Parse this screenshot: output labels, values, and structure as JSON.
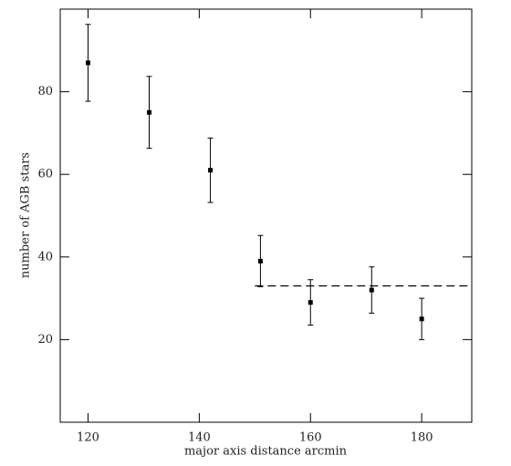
{
  "chart_data": {
    "type": "scatter",
    "xlabel": "major axis distance arcmin",
    "ylabel": "number of AGB stars",
    "x": [
      120,
      131,
      142,
      151,
      160,
      171,
      180
    ],
    "series": [
      {
        "color": "#000000",
        "values": [
          87,
          75,
          61,
          39,
          29,
          32,
          25
        ],
        "errors": [
          9.3,
          8.7,
          7.8,
          6.2,
          5.5,
          5.6,
          5
        ]
      }
    ],
    "hline": {
      "value": 33,
      "x_start": 150,
      "style": "dashed"
    },
    "xlim": [
      115,
      189
    ],
    "xticks": [
      120,
      140,
      160,
      180
    ],
    "ylim": [
      0,
      100
    ],
    "yticks": [
      20,
      40,
      60,
      80
    ],
    "grid": false
  }
}
